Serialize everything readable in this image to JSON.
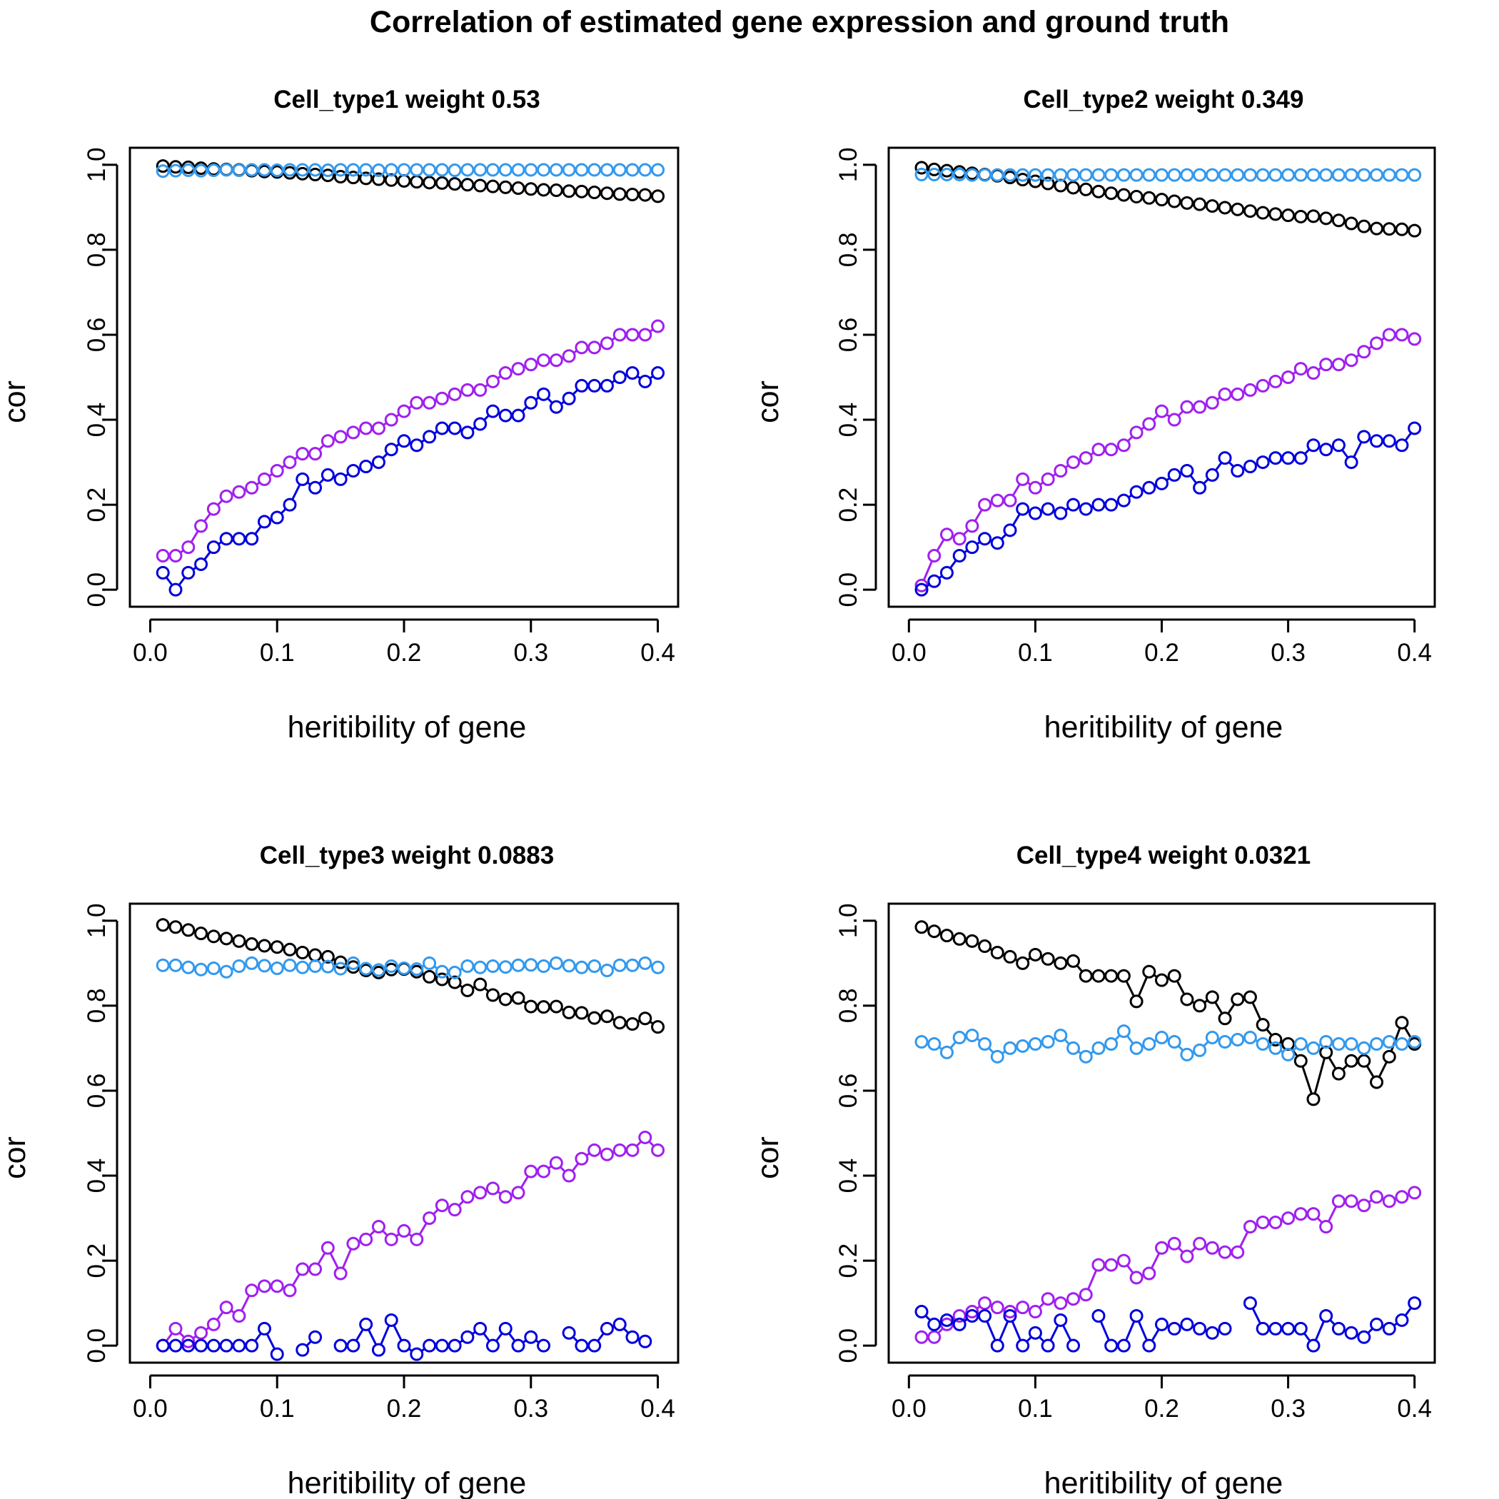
{
  "figure": {
    "title": "Correlation of estimated gene expression and ground truth"
  },
  "series_colors": [
    "#000000",
    "#3399ee",
    "#a020f0",
    "#0000dd"
  ],
  "chart_data": [
    {
      "type": "line",
      "title": "Cell_type1 weight 0.53",
      "xlabel": "heritibility of gene",
      "ylabel": "cor",
      "xlim": [
        0.0,
        0.4
      ],
      "ylim": [
        0.0,
        1.0
      ],
      "xticks": [
        "0.0",
        "0.1",
        "0.2",
        "0.3",
        "0.4"
      ],
      "yticks": [
        "0.0",
        "0.2",
        "0.4",
        "0.6",
        "0.8",
        "1.0"
      ],
      "x": [
        0.01,
        0.02,
        0.03,
        0.04,
        0.05,
        0.06,
        0.07,
        0.08,
        0.09,
        0.1,
        0.11,
        0.12,
        0.13,
        0.14,
        0.15,
        0.16,
        0.17,
        0.18,
        0.19,
        0.2,
        0.21,
        0.22,
        0.23,
        0.24,
        0.25,
        0.26,
        0.27,
        0.28,
        0.29,
        0.3,
        0.31,
        0.32,
        0.33,
        0.34,
        0.35,
        0.36,
        0.37,
        0.38,
        0.39,
        0.4
      ],
      "series": [
        {
          "values": [
            0.997,
            0.995,
            0.994,
            0.992,
            0.99,
            0.989,
            0.988,
            0.986,
            0.984,
            0.983,
            0.981,
            0.979,
            0.977,
            0.975,
            0.972,
            0.97,
            0.968,
            0.966,
            0.964,
            0.962,
            0.96,
            0.958,
            0.957,
            0.955,
            0.953,
            0.951,
            0.949,
            0.947,
            0.945,
            0.943,
            0.941,
            0.94,
            0.938,
            0.937,
            0.935,
            0.933,
            0.931,
            0.93,
            0.929,
            0.926
          ]
        },
        {
          "values": [
            0.985,
            0.986,
            0.987,
            0.986,
            0.987,
            0.988,
            0.987,
            0.988,
            0.988,
            0.987,
            0.988,
            0.988,
            0.988,
            0.987,
            0.988,
            0.988,
            0.988,
            0.987,
            0.988,
            0.988,
            0.988,
            0.988,
            0.988,
            0.987,
            0.988,
            0.988,
            0.988,
            0.988,
            0.988,
            0.988,
            0.988,
            0.988,
            0.988,
            0.988,
            0.988,
            0.988,
            0.988,
            0.988,
            0.988,
            0.988
          ]
        },
        {
          "values": [
            0.08,
            0.08,
            0.1,
            0.15,
            0.19,
            0.22,
            0.23,
            0.24,
            0.26,
            0.28,
            0.3,
            0.32,
            0.32,
            0.35,
            0.36,
            0.37,
            0.38,
            0.38,
            0.4,
            0.42,
            0.44,
            0.44,
            0.45,
            0.46,
            0.47,
            0.47,
            0.49,
            0.51,
            0.52,
            0.53,
            0.54,
            0.54,
            0.55,
            0.57,
            0.57,
            0.58,
            0.6,
            0.6,
            0.6,
            0.62
          ]
        },
        {
          "values": [
            0.04,
            0.0,
            0.04,
            0.06,
            0.1,
            0.12,
            0.12,
            0.12,
            0.16,
            0.17,
            0.2,
            0.26,
            0.24,
            0.27,
            0.26,
            0.28,
            0.29,
            0.3,
            0.33,
            0.35,
            0.34,
            0.36,
            0.38,
            0.38,
            0.37,
            0.39,
            0.42,
            0.41,
            0.41,
            0.44,
            0.46,
            0.43,
            0.45,
            0.48,
            0.48,
            0.48,
            0.5,
            0.51,
            0.49,
            0.51
          ]
        }
      ]
    },
    {
      "type": "line",
      "title": "Cell_type2 weight 0.349",
      "xlabel": "heritibility of gene",
      "ylabel": "cor",
      "xlim": [
        0.0,
        0.4
      ],
      "ylim": [
        0.0,
        1.0
      ],
      "xticks": [
        "0.0",
        "0.1",
        "0.2",
        "0.3",
        "0.4"
      ],
      "yticks": [
        "0.0",
        "0.2",
        "0.4",
        "0.6",
        "0.8",
        "1.0"
      ],
      "x": [
        0.01,
        0.02,
        0.03,
        0.04,
        0.05,
        0.06,
        0.07,
        0.08,
        0.09,
        0.1,
        0.11,
        0.12,
        0.13,
        0.14,
        0.15,
        0.16,
        0.17,
        0.18,
        0.19,
        0.2,
        0.21,
        0.22,
        0.23,
        0.24,
        0.25,
        0.26,
        0.27,
        0.28,
        0.29,
        0.3,
        0.31,
        0.32,
        0.33,
        0.34,
        0.35,
        0.36,
        0.37,
        0.38,
        0.39,
        0.4
      ],
      "series": [
        {
          "values": [
            0.993,
            0.989,
            0.986,
            0.983,
            0.98,
            0.977,
            0.974,
            0.97,
            0.965,
            0.961,
            0.956,
            0.951,
            0.946,
            0.942,
            0.937,
            0.933,
            0.929,
            0.925,
            0.922,
            0.918,
            0.914,
            0.91,
            0.907,
            0.903,
            0.899,
            0.895,
            0.891,
            0.887,
            0.884,
            0.881,
            0.878,
            0.879,
            0.874,
            0.869,
            0.862,
            0.855,
            0.85,
            0.849,
            0.848,
            0.845
          ]
        },
        {
          "values": [
            0.977,
            0.977,
            0.977,
            0.977,
            0.976,
            0.976,
            0.976,
            0.976,
            0.976,
            0.976,
            0.976,
            0.976,
            0.976,
            0.976,
            0.976,
            0.976,
            0.976,
            0.976,
            0.976,
            0.976,
            0.976,
            0.976,
            0.976,
            0.976,
            0.976,
            0.976,
            0.976,
            0.976,
            0.976,
            0.976,
            0.976,
            0.976,
            0.976,
            0.976,
            0.976,
            0.976,
            0.976,
            0.976,
            0.976,
            0.976
          ]
        },
        {
          "values": [
            0.01,
            0.08,
            0.13,
            0.12,
            0.15,
            0.2,
            0.21,
            0.21,
            0.26,
            0.24,
            0.26,
            0.28,
            0.3,
            0.31,
            0.33,
            0.33,
            0.34,
            0.37,
            0.39,
            0.42,
            0.4,
            0.43,
            0.43,
            0.44,
            0.46,
            0.46,
            0.47,
            0.48,
            0.49,
            0.5,
            0.52,
            0.51,
            0.53,
            0.53,
            0.54,
            0.56,
            0.58,
            0.6,
            0.6,
            0.59
          ]
        },
        {
          "values": [
            0.0,
            0.02,
            0.04,
            0.08,
            0.1,
            0.12,
            0.11,
            0.14,
            0.19,
            0.18,
            0.19,
            0.18,
            0.2,
            0.19,
            0.2,
            0.2,
            0.21,
            0.23,
            0.24,
            0.25,
            0.27,
            0.28,
            0.24,
            0.27,
            0.31,
            0.28,
            0.29,
            0.3,
            0.31,
            0.31,
            0.31,
            0.34,
            0.33,
            0.34,
            0.3,
            0.36,
            0.35,
            0.35,
            0.34,
            0.38
          ]
        }
      ]
    },
    {
      "type": "line",
      "title": "Cell_type3 weight 0.0883",
      "xlabel": "heritibility of gene",
      "ylabel": "cor",
      "xlim": [
        0.0,
        0.4
      ],
      "ylim": [
        0.0,
        1.0
      ],
      "xticks": [
        "0.0",
        "0.1",
        "0.2",
        "0.3",
        "0.4"
      ],
      "yticks": [
        "0.0",
        "0.2",
        "0.4",
        "0.6",
        "0.8",
        "1.0"
      ],
      "x": [
        0.01,
        0.02,
        0.03,
        0.04,
        0.05,
        0.06,
        0.07,
        0.08,
        0.09,
        0.1,
        0.11,
        0.12,
        0.13,
        0.14,
        0.15,
        0.16,
        0.17,
        0.18,
        0.19,
        0.2,
        0.21,
        0.22,
        0.23,
        0.24,
        0.25,
        0.26,
        0.27,
        0.28,
        0.29,
        0.3,
        0.31,
        0.32,
        0.33,
        0.34,
        0.35,
        0.36,
        0.37,
        0.38,
        0.39,
        0.4
      ],
      "series": [
        {
          "values": [
            0.99,
            0.985,
            0.978,
            0.97,
            0.963,
            0.958,
            0.952,
            0.945,
            0.941,
            0.938,
            0.932,
            0.925,
            0.919,
            0.915,
            0.902,
            0.891,
            0.883,
            0.878,
            0.885,
            0.886,
            0.88,
            0.868,
            0.862,
            0.855,
            0.836,
            0.85,
            0.825,
            0.815,
            0.818,
            0.798,
            0.797,
            0.798,
            0.784,
            0.783,
            0.771,
            0.775,
            0.76,
            0.757,
            0.77,
            0.75
          ]
        },
        {
          "values": [
            0.895,
            0.895,
            0.89,
            0.885,
            0.888,
            0.88,
            0.893,
            0.9,
            0.894,
            0.888,
            0.895,
            0.89,
            0.893,
            0.892,
            0.887,
            0.9,
            0.887,
            0.884,
            0.893,
            0.888,
            0.886,
            0.9,
            0.88,
            0.878,
            0.893,
            0.89,
            0.893,
            0.891,
            0.895,
            0.896,
            0.893,
            0.9,
            0.894,
            0.89,
            0.893,
            0.883,
            0.895,
            0.895,
            0.9,
            0.89
          ]
        },
        {
          "values": [
            0.0,
            0.04,
            0.01,
            0.03,
            0.05,
            0.09,
            0.07,
            0.13,
            0.14,
            0.14,
            0.13,
            0.18,
            0.18,
            0.23,
            0.17,
            0.24,
            0.25,
            0.28,
            0.25,
            0.27,
            0.25,
            0.3,
            0.33,
            0.32,
            0.35,
            0.36,
            0.37,
            0.35,
            0.36,
            0.41,
            0.41,
            0.43,
            0.4,
            0.44,
            0.46,
            0.45,
            0.46,
            0.46,
            0.49,
            0.46
          ]
        },
        {
          "values": [
            0.0,
            0.0,
            0.0,
            0.0,
            0.0,
            0.0,
            0.0,
            0.0,
            0.04,
            -0.02,
            null,
            -0.01,
            0.02,
            null,
            0.0,
            0.0,
            0.05,
            -0.01,
            0.06,
            0.0,
            -0.02,
            0.0,
            0.0,
            0.0,
            0.02,
            0.04,
            0.0,
            0.04,
            0.0,
            0.02,
            0.0,
            null,
            0.03,
            0.0,
            0.0,
            0.04,
            0.05,
            0.02,
            0.01,
            null
          ]
        }
      ]
    },
    {
      "type": "line",
      "title": "Cell_type4 weight 0.0321",
      "xlabel": "heritibility of gene",
      "ylabel": "cor",
      "xlim": [
        0.0,
        0.4
      ],
      "ylim": [
        0.0,
        1.0
      ],
      "xticks": [
        "0.0",
        "0.1",
        "0.2",
        "0.3",
        "0.4"
      ],
      "yticks": [
        "0.0",
        "0.2",
        "0.4",
        "0.6",
        "0.8",
        "1.0"
      ],
      "x": [
        0.01,
        0.02,
        0.03,
        0.04,
        0.05,
        0.06,
        0.07,
        0.08,
        0.09,
        0.1,
        0.11,
        0.12,
        0.13,
        0.14,
        0.15,
        0.16,
        0.17,
        0.18,
        0.19,
        0.2,
        0.21,
        0.22,
        0.23,
        0.24,
        0.25,
        0.26,
        0.27,
        0.28,
        0.29,
        0.3,
        0.31,
        0.32,
        0.33,
        0.34,
        0.35,
        0.36,
        0.37,
        0.38,
        0.39,
        0.4
      ],
      "series": [
        {
          "values": [
            0.985,
            0.975,
            0.965,
            0.957,
            0.952,
            0.94,
            0.925,
            0.915,
            0.9,
            0.92,
            0.91,
            0.9,
            0.905,
            0.87,
            0.87,
            0.87,
            0.87,
            0.81,
            0.88,
            0.86,
            0.87,
            0.815,
            0.8,
            0.82,
            0.77,
            0.815,
            0.82,
            0.755,
            0.72,
            0.71,
            0.67,
            0.58,
            0.69,
            0.64,
            0.67,
            0.67,
            0.62,
            0.68,
            0.76,
            0.71
          ]
        },
        {
          "values": [
            0.715,
            0.71,
            0.69,
            0.725,
            0.73,
            0.71,
            0.68,
            0.7,
            0.705,
            0.71,
            0.715,
            0.73,
            0.7,
            0.68,
            0.7,
            0.71,
            0.74,
            0.7,
            0.71,
            0.725,
            0.715,
            0.685,
            0.695,
            0.725,
            0.715,
            0.72,
            0.725,
            0.71,
            0.7,
            0.685,
            0.71,
            0.7,
            0.715,
            0.71,
            0.71,
            0.7,
            0.71,
            0.715,
            0.71,
            0.715
          ]
        },
        {
          "values": [
            0.02,
            0.02,
            0.05,
            0.07,
            0.08,
            0.1,
            0.09,
            0.08,
            0.09,
            0.08,
            0.11,
            0.1,
            0.11,
            0.12,
            0.19,
            0.19,
            0.2,
            0.16,
            0.17,
            0.23,
            0.24,
            0.21,
            0.24,
            0.23,
            0.22,
            0.22,
            0.28,
            0.29,
            0.29,
            0.3,
            0.31,
            0.31,
            0.28,
            0.34,
            0.34,
            0.33,
            0.35,
            0.34,
            0.35,
            0.36
          ]
        },
        {
          "values": [
            0.08,
            0.05,
            0.06,
            0.05,
            0.07,
            0.07,
            0.0,
            0.07,
            0.0,
            0.03,
            0.0,
            0.06,
            0.0,
            null,
            0.07,
            0.0,
            0.0,
            0.07,
            0.0,
            0.05,
            0.04,
            0.05,
            0.04,
            0.03,
            0.04,
            null,
            0.1,
            0.04,
            0.04,
            0.04,
            0.04,
            0.0,
            0.07,
            0.04,
            0.03,
            0.02,
            0.05,
            0.04,
            0.06,
            0.1
          ]
        }
      ]
    }
  ]
}
